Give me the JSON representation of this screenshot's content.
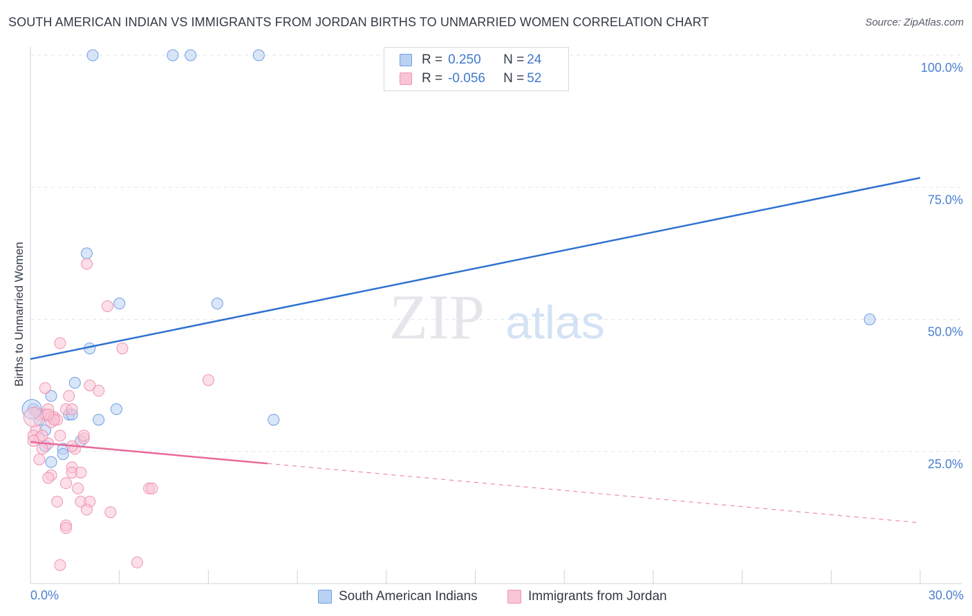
{
  "header": {
    "title": "SOUTH AMERICAN INDIAN VS IMMIGRANTS FROM JORDAN BIRTHS TO UNMARRIED WOMEN CORRELATION CHART",
    "source": "Source: ZipAtlas.com"
  },
  "watermark": {
    "zip": "ZIP",
    "atlas": "atlas"
  },
  "legend": {
    "rows": [
      {
        "r_label": "R =",
        "r_value": "0.250",
        "n_label": "N =",
        "n_value": "24"
      },
      {
        "r_label": "R =",
        "r_value": "-0.056",
        "n_label": "N =",
        "n_value": "52"
      }
    ]
  },
  "bottom_legend": {
    "series1": "South American Indians",
    "series2": "Immigrants from Jordan"
  },
  "colors": {
    "blue_fill": "#b9d1f3",
    "blue_stroke": "#6f9ee0",
    "blue_line": "#2f72cf",
    "pink_fill": "#f9c5d6",
    "pink_stroke": "#ee93b3",
    "pink_line": "#e8699a",
    "tick_text": "#4a7fcf",
    "grid": "#e2e5ea"
  },
  "chart_data": {
    "type": "scatter",
    "title": "SOUTH AMERICAN INDIAN VS IMMIGRANTS FROM JORDAN BIRTHS TO UNMARRIED WOMEN CORRELATION CHART",
    "xlabel": "",
    "ylabel": "Births to Unmarried Women",
    "xlim": [
      0,
      30
    ],
    "ylim": [
      0,
      100
    ],
    "x_tick_labels": [
      "0.0%",
      "30.0%"
    ],
    "y_ticks": [
      25,
      50,
      75,
      100
    ],
    "y_tick_labels": [
      "25.0%",
      "50.0%",
      "75.0%",
      "100.0%"
    ],
    "grid": true,
    "legend_position": "top-center",
    "series": [
      {
        "name": "South American Indians",
        "color": "blue",
        "r": 0.25,
        "n": 24,
        "points": [
          [
            2.1,
            100
          ],
          [
            4.8,
            100
          ],
          [
            5.4,
            100
          ],
          [
            7.7,
            100
          ],
          [
            1.9,
            62.5
          ],
          [
            3.0,
            53
          ],
          [
            6.3,
            53
          ],
          [
            28.3,
            50
          ],
          [
            2.0,
            44.5
          ],
          [
            1.5,
            38
          ],
          [
            0.1,
            33
          ],
          [
            0.7,
            35.5
          ],
          [
            2.9,
            33
          ],
          [
            1.3,
            32
          ],
          [
            1.4,
            32
          ],
          [
            0.3,
            31
          ],
          [
            2.3,
            31
          ],
          [
            8.2,
            31
          ],
          [
            0.5,
            29
          ],
          [
            1.7,
            27
          ],
          [
            1.1,
            25.5
          ],
          [
            0.7,
            23
          ],
          [
            0.5,
            26
          ],
          [
            1.1,
            24.5
          ]
        ],
        "trend": {
          "x_start": 0,
          "y_start": 42.5,
          "x_end": 30,
          "y_end": 76.8,
          "dashed_from_x": null
        }
      },
      {
        "name": "Immigrants from Jordan",
        "color": "pink",
        "r": -0.056,
        "n": 52,
        "points": [
          [
            1.9,
            60.5
          ],
          [
            2.6,
            52.5
          ],
          [
            1.0,
            45.5
          ],
          [
            3.1,
            44.5
          ],
          [
            6.0,
            38.5
          ],
          [
            0.5,
            37
          ],
          [
            2.0,
            37.5
          ],
          [
            2.3,
            36.5
          ],
          [
            1.3,
            35.5
          ],
          [
            1.2,
            33
          ],
          [
            1.4,
            33
          ],
          [
            0.6,
            33
          ],
          [
            0.3,
            32
          ],
          [
            0.5,
            32
          ],
          [
            0.7,
            31.5
          ],
          [
            0.8,
            31.5
          ],
          [
            0.7,
            30.5
          ],
          [
            0.9,
            31
          ],
          [
            0.2,
            29
          ],
          [
            0.1,
            28
          ],
          [
            0.3,
            27.5
          ],
          [
            1.0,
            28
          ],
          [
            1.8,
            27.5
          ],
          [
            0.6,
            26.5
          ],
          [
            0.4,
            25.5
          ],
          [
            1.5,
            25.5
          ],
          [
            0.3,
            23.5
          ],
          [
            1.4,
            22
          ],
          [
            1.4,
            21
          ],
          [
            1.7,
            21
          ],
          [
            0.7,
            20.5
          ],
          [
            0.6,
            20
          ],
          [
            1.2,
            19
          ],
          [
            1.6,
            18
          ],
          [
            4.0,
            18
          ],
          [
            4.1,
            18
          ],
          [
            0.9,
            15.5
          ],
          [
            1.7,
            15.5
          ],
          [
            2.0,
            15.5
          ],
          [
            1.9,
            14
          ],
          [
            2.7,
            13.5
          ],
          [
            1.2,
            11
          ],
          [
            1.2,
            10.5
          ],
          [
            1.0,
            3.5
          ],
          [
            3.6,
            4
          ],
          [
            0.2,
            32.5
          ],
          [
            0.4,
            28
          ],
          [
            1.4,
            26
          ],
          [
            0.8,
            31
          ],
          [
            0.6,
            32
          ],
          [
            1.8,
            28
          ],
          [
            0.1,
            27
          ]
        ],
        "trend": {
          "x_start": 0,
          "y_start": 26.8,
          "x_end": 30,
          "y_end": 11.5,
          "dashed_from_x": 8.0
        }
      }
    ]
  }
}
